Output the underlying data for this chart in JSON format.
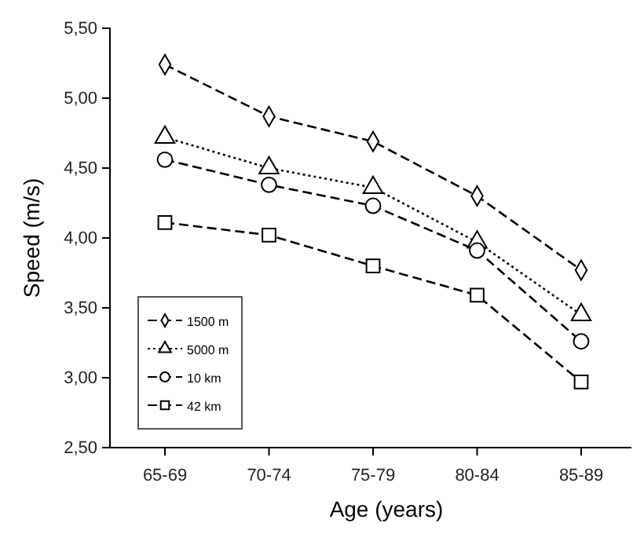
{
  "chart_data": {
    "type": "line",
    "xlabel": "Age (years)",
    "ylabel": "Speed (m/s)",
    "categories": [
      "65-69",
      "70-74",
      "75-79",
      "80-84",
      "85-89"
    ],
    "series": [
      {
        "name": "1500 m",
        "color": "#000000",
        "marker": "diamond",
        "line_style": "dashed",
        "values": [
          5.24,
          4.87,
          4.69,
          4.3,
          3.77
        ]
      },
      {
        "name": "5000 m",
        "color": "#000000",
        "marker": "triangle",
        "line_style": "dotted",
        "values": [
          4.72,
          4.5,
          4.36,
          3.97,
          3.45
        ]
      },
      {
        "name": "10 km",
        "color": "#000000",
        "marker": "circle",
        "line_style": "dashed",
        "values": [
          4.56,
          4.38,
          4.23,
          3.91,
          3.26
        ]
      },
      {
        "name": "42 km",
        "color": "#000000",
        "marker": "square",
        "line_style": "dashed",
        "values": [
          4.11,
          4.02,
          3.8,
          3.59,
          2.97
        ]
      }
    ],
    "ylim": [
      2.5,
      5.5
    ],
    "yticks": [
      {
        "value": 2.5,
        "label": "2,50"
      },
      {
        "value": 3,
        "label": "3,00"
      },
      {
        "value": 3.5,
        "label": "3,50"
      },
      {
        "value": 4,
        "label": "4,00"
      },
      {
        "value": 4.5,
        "label": "4,50"
      },
      {
        "value": 5,
        "label": "5,00"
      },
      {
        "value": 5.5,
        "label": "5,50"
      }
    ],
    "legend": "bottom left",
    "grid": false
  }
}
